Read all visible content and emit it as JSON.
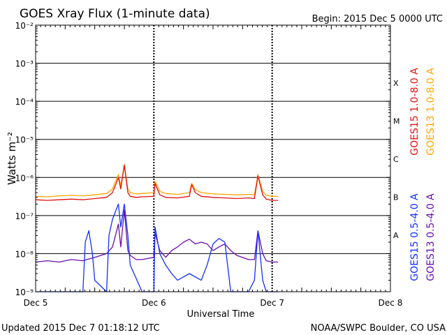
{
  "header": {
    "title": "GOES Xray Flux (1-minute data)",
    "begin": "Begin:  2015 Dec 5 0000 UTC"
  },
  "footer": {
    "updated": "Updated 2015 Dec  7 01:18:12 UTC",
    "source": "NOAA/SWPC Boulder, CO USA"
  },
  "chart_data": {
    "type": "line",
    "title": "GOES Xray Flux (1-minute data)",
    "xlabel": "Universal Time",
    "ylabel": "Watts m⁻²",
    "xlim": [
      0,
      3
    ],
    "x_tick_labels": [
      "Dec 5",
      "Dec 6",
      "Dec 7",
      "Dec 8"
    ],
    "ylim": [
      1e-09,
      0.01
    ],
    "yscale": "log",
    "y_tick_labels": [
      "10⁻⁹",
      "10⁻⁸",
      "10⁻⁷",
      "10⁻⁶",
      "10⁻⁵",
      "10⁻⁴",
      "10⁻³",
      "10⁻²"
    ],
    "flare_classes": [
      {
        "label": "A",
        "value": 1e-08
      },
      {
        "label": "B",
        "value": 1e-07
      },
      {
        "label": "C",
        "value": 1e-06
      },
      {
        "label": "M",
        "value": 1e-05
      },
      {
        "label": "X",
        "value": 0.0001
      }
    ],
    "grid": true,
    "legend_position": "right",
    "series": [
      {
        "name": "GOES15 1.0-8.0 A",
        "color": "#e01010",
        "x": [
          0,
          0.1,
          0.2,
          0.3,
          0.4,
          0.5,
          0.6,
          0.65,
          0.7,
          0.72,
          0.75,
          0.78,
          0.8,
          0.85,
          0.9,
          1.0,
          1.01,
          1.05,
          1.1,
          1.2,
          1.3,
          1.32,
          1.35,
          1.4,
          1.5,
          1.6,
          1.7,
          1.8,
          1.85,
          1.88,
          1.92,
          1.95,
          2.0,
          2.05
        ],
        "y": [
          2.6e-07,
          2.5e-07,
          2.6e-07,
          2.7e-07,
          2.6e-07,
          2.8e-07,
          3e-07,
          4e-07,
          1e-06,
          5e-07,
          2.1e-06,
          4e-07,
          3.2e-07,
          3e-07,
          3.1e-07,
          3.2e-07,
          7e-07,
          3.5e-07,
          3e-07,
          2.9e-07,
          3.2e-07,
          6.5e-07,
          4e-07,
          3.2e-07,
          3e-07,
          2.9e-07,
          2.8e-07,
          2.9e-07,
          2.8e-07,
          1.1e-06,
          3.5e-07,
          2.7e-07,
          2.5e-07,
          2.5e-07
        ]
      },
      {
        "name": "GOES13 1.0-8.0 A",
        "color": "#ffa500",
        "x": [
          0,
          0.1,
          0.2,
          0.3,
          0.4,
          0.5,
          0.6,
          0.65,
          0.7,
          0.72,
          0.75,
          0.78,
          0.8,
          0.85,
          0.9,
          1.0,
          1.01,
          1.05,
          1.1,
          1.2,
          1.3,
          1.32,
          1.35,
          1.4,
          1.5,
          1.6,
          1.7,
          1.8,
          1.85,
          1.88,
          1.92,
          1.95,
          2.0,
          2.05
        ],
        "y": [
          3.2e-07,
          3.1e-07,
          3.3e-07,
          3.4e-07,
          3.3e-07,
          3.5e-07,
          3.8e-07,
          5e-07,
          1.2e-06,
          6e-07,
          2.2e-06,
          5e-07,
          4e-07,
          3.7e-07,
          3.8e-07,
          4e-07,
          8e-07,
          4.3e-07,
          3.8e-07,
          3.6e-07,
          4e-07,
          7e-07,
          4.8e-07,
          4e-07,
          3.7e-07,
          3.6e-07,
          3.5e-07,
          3.6e-07,
          3.5e-07,
          1.2e-06,
          4.3e-07,
          3.4e-07,
          3.2e-07,
          3.2e-07
        ]
      },
      {
        "name": "GOES15 0.5-4.0 A",
        "color": "#1030ff",
        "x": [
          0,
          0.2,
          0.4,
          0.42,
          0.45,
          0.48,
          0.5,
          0.6,
          0.62,
          0.65,
          0.7,
          0.72,
          0.75,
          0.78,
          0.8,
          0.9,
          1.0,
          1.01,
          1.05,
          1.1,
          1.15,
          1.2,
          1.3,
          1.4,
          1.45,
          1.5,
          1.55,
          1.6,
          1.65,
          1.7,
          1.8,
          1.85,
          1.88,
          1.92,
          1.95,
          2.0,
          2.05
        ],
        "y": [
          1e-09,
          1e-09,
          1e-09,
          2e-08,
          4e-08,
          1e-08,
          2e-09,
          1e-09,
          3e-08,
          8e-08,
          2e-07,
          5e-08,
          2e-07,
          3e-08,
          5e-09,
          1e-09,
          1e-09,
          5e-08,
          1e-08,
          5e-09,
          3e-09,
          2e-09,
          3e-09,
          2e-09,
          5e-09,
          1.8e-08,
          2.5e-08,
          2e-08,
          1e-09,
          1e-09,
          1e-09,
          2e-09,
          4e-08,
          2e-09,
          1e-09,
          1e-09,
          1e-09
        ]
      },
      {
        "name": "GOES13 0.5-4.0 A",
        "color": "#6a0dad",
        "x": [
          0,
          0.1,
          0.2,
          0.3,
          0.4,
          0.5,
          0.6,
          0.65,
          0.7,
          0.72,
          0.75,
          0.78,
          0.8,
          0.85,
          0.9,
          1.0,
          1.01,
          1.05,
          1.1,
          1.15,
          1.2,
          1.25,
          1.3,
          1.35,
          1.4,
          1.45,
          1.5,
          1.55,
          1.6,
          1.65,
          1.7,
          1.8,
          1.85,
          1.88,
          1.92,
          1.95,
          2.0,
          2.05
        ],
        "y": [
          6e-09,
          6.5e-09,
          6e-09,
          7e-09,
          6.5e-09,
          8e-09,
          1e-08,
          1.5e-08,
          6e-08,
          1.5e-08,
          1.4e-07,
          1.2e-08,
          9e-09,
          7e-09,
          7e-09,
          8e-09,
          3.5e-08,
          1.2e-08,
          8e-09,
          1.2e-08,
          1.5e-08,
          2e-08,
          2.4e-08,
          1.8e-08,
          2e-08,
          1.8e-08,
          1.2e-08,
          1.5e-08,
          1.8e-08,
          1.2e-08,
          9e-09,
          7e-09,
          7e-09,
          4e-08,
          1e-08,
          6.5e-09,
          6e-09,
          6e-09
        ]
      }
    ]
  }
}
